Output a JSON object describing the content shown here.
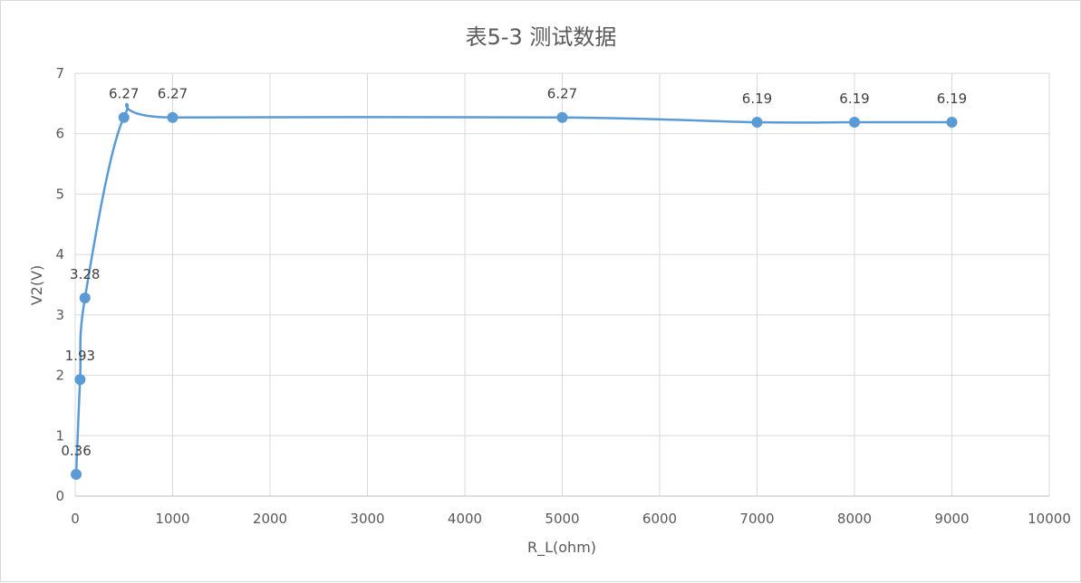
{
  "chart_data": {
    "type": "scatter",
    "title": "表5-3 测试数据",
    "xlabel": "R_L(ohm)",
    "ylabel": "V2(V)",
    "xlim": [
      0,
      10000
    ],
    "ylim": [
      0,
      7
    ],
    "x_ticks": [
      0,
      1000,
      2000,
      3000,
      4000,
      5000,
      6000,
      7000,
      8000,
      9000,
      10000
    ],
    "y_ticks": [
      0,
      1,
      2,
      3,
      4,
      5,
      6,
      7
    ],
    "grid": true,
    "smooth": true,
    "series": [
      {
        "x": [
          10,
          50,
          100,
          500,
          1000,
          5000,
          7000,
          8000,
          9000
        ],
        "y": [
          0.36,
          1.93,
          3.28,
          6.27,
          6.27,
          6.27,
          6.19,
          6.19,
          6.19
        ],
        "labels": [
          "0.36",
          "1.93",
          "3.28",
          "6.27",
          "6.27",
          "6.27",
          "6.19",
          "6.19",
          "6.19"
        ],
        "color": "#5b9bd5"
      }
    ]
  }
}
